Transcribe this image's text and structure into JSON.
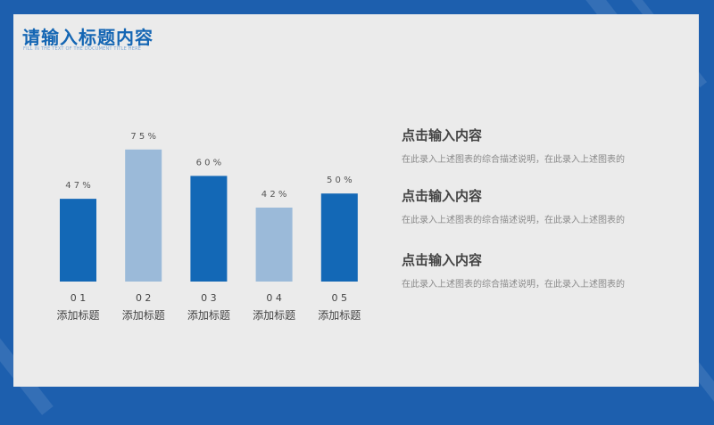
{
  "slide": {
    "title": "请输入标题内容",
    "subtitle": "FILL IN THE TEXT OF THE DOCUMENT TITLE HERE"
  },
  "chart_data": {
    "type": "bar",
    "title": "",
    "xlabel": "",
    "ylabel": "",
    "ylim": [
      0,
      100
    ],
    "grid": false,
    "legend": "none",
    "categories": [
      "0 1",
      "0 2",
      "0 3",
      "0 4",
      "0 5"
    ],
    "category_subtitles": [
      "添加标题",
      "添加标题",
      "添加标题",
      "添加标题",
      "添加标题"
    ],
    "values": [
      47,
      75,
      60,
      42,
      50
    ],
    "value_labels": [
      "4 7 %",
      "7 5 %",
      "6 0 %",
      "4 2 %",
      "5 0 %"
    ],
    "bar_colors": [
      "#1368b6",
      "#9bbad9",
      "#1368b6",
      "#9bbad9",
      "#1368b6"
    ]
  },
  "blocks": [
    {
      "heading": "点击输入内容",
      "desc": "在此录入上述图表的综合描述说明，在此录入上述图表的"
    },
    {
      "heading": "点击输入内容",
      "desc": "在此录入上述图表的综合描述说明，在此录入上述图表的"
    },
    {
      "heading": "点击输入内容",
      "desc": "在此录入上述图表的综合描述说明，在此录入上述图表的"
    }
  ],
  "colors": {
    "background": "#1d5fae",
    "panel": "#ebebeb",
    "accent": "#1466b4",
    "bar_dark": "#1368b6",
    "bar_light": "#9bbad9"
  }
}
